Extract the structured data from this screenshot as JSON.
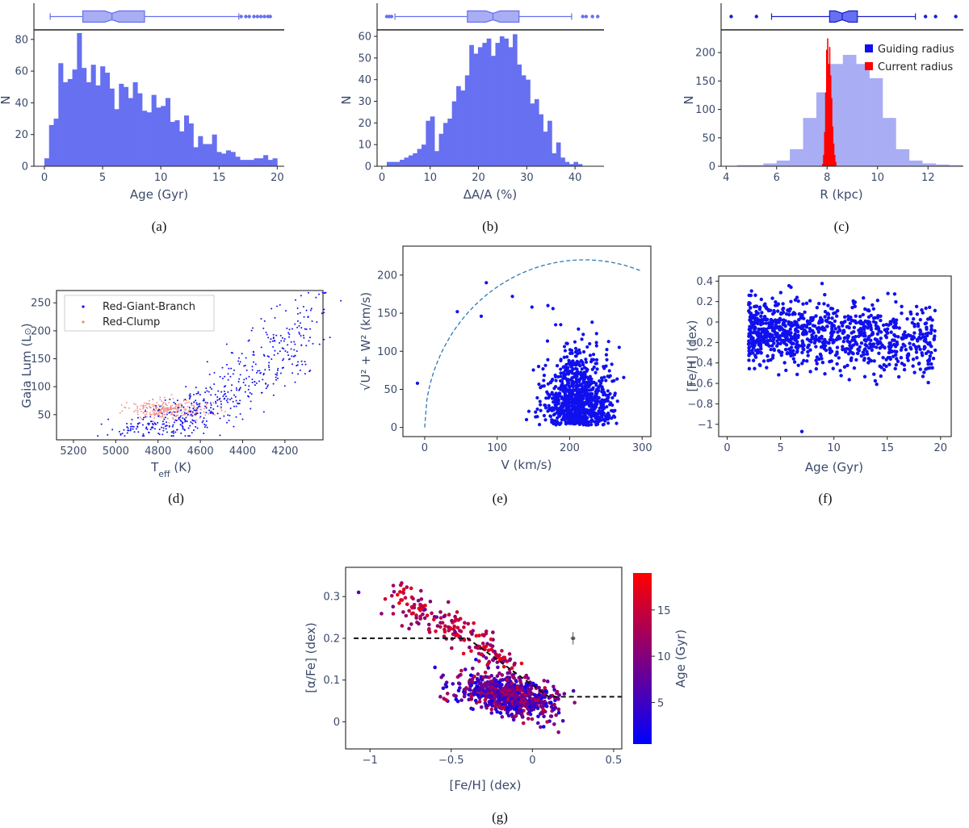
{
  "colors": {
    "hist_blue": "#6670f0",
    "hist_blue_light": "#a9adf3",
    "point_blue": "#1010ee",
    "red": "#ff0000",
    "rc_pink": "#f08a80",
    "tick_text": "#3b4a6b",
    "curve": "#2a7ab8"
  },
  "chart_data": [
    {
      "panel": "a",
      "type": "bar",
      "caption": "(a)",
      "xlabel": "Age (Gyr)",
      "ylabel": "N",
      "xlim": [
        -0.9,
        20.6
      ],
      "ylim": [
        0,
        86
      ],
      "xticks": [
        "0",
        "5",
        "10",
        "15",
        "20"
      ],
      "yticks": [
        "0",
        "20",
        "40",
        "60",
        "80"
      ],
      "bin_start": 0,
      "bin_width": 0.4,
      "values": [
        5,
        26,
        30,
        65,
        53,
        55,
        61,
        84,
        62,
        53,
        64,
        51,
        63,
        59,
        49,
        36,
        52,
        50,
        43,
        53,
        46,
        35,
        34,
        45,
        37,
        38,
        43,
        28,
        29,
        22,
        32,
        27,
        12,
        19,
        14,
        14,
        20,
        9,
        8,
        10,
        9,
        6,
        4,
        4,
        4,
        5,
        5,
        7,
        4,
        5
      ],
      "boxplot": {
        "min": 0.5,
        "q1": 3.3,
        "median": 5.8,
        "q3": 8.6,
        "max": 16.7,
        "outliers": [
          16.9,
          17.3,
          17.6,
          18.0,
          18.3,
          18.6,
          18.9,
          19.2,
          19.4
        ]
      }
    },
    {
      "panel": "b",
      "type": "bar",
      "caption": "(b)",
      "xlabel": "ΔA/A (%)",
      "ylabel": "N",
      "xlim": [
        -1,
        46
      ],
      "ylim": [
        0,
        63
      ],
      "xticks": [
        "0",
        "10",
        "20",
        "30",
        "40"
      ],
      "yticks": [
        "0",
        "10",
        "20",
        "30",
        "40",
        "50",
        "60"
      ],
      "bin_start": 1,
      "bin_width": 0.9,
      "values": [
        2,
        2,
        2,
        3,
        4,
        5,
        6,
        8,
        10,
        21,
        23,
        7,
        15,
        20,
        22,
        30,
        37,
        35,
        42,
        56,
        52,
        55,
        57,
        59,
        51,
        57,
        60,
        59,
        55,
        61,
        47,
        42,
        40,
        29,
        31,
        24,
        16,
        21,
        6,
        11,
        4,
        2,
        1,
        2,
        1,
        0,
        0,
        0
      ],
      "boxplot": {
        "min": 2.7,
        "q1": 17.7,
        "median": 23.0,
        "q3": 28.4,
        "max": 39.3,
        "outliers": [
          1.0,
          1.5,
          2.0,
          41.6,
          42.3,
          43.6,
          44.7
        ]
      }
    },
    {
      "panel": "c",
      "type": "bar",
      "caption": "(c)",
      "xlabel": "R (kpc)",
      "ylabel": "N",
      "xlim": [
        3.8,
        13.4
      ],
      "ylim": [
        0,
        240
      ],
      "xticks": [
        "4",
        "6",
        "8",
        "10",
        "12"
      ],
      "yticks": [
        "0",
        "50",
        "100",
        "150",
        "200"
      ],
      "series": [
        {
          "name": "Guiding radius",
          "bin_start": 3.9,
          "bin_width": 0.525,
          "values": [
            0,
            2,
            2,
            5,
            10,
            30,
            85,
            130,
            180,
            196,
            180,
            155,
            85,
            30,
            10,
            5,
            3,
            2
          ]
        },
        {
          "name": "Current radius",
          "bin_start": 7.8,
          "bin_width": 0.04,
          "values": [
            4,
            20,
            60,
            130,
            205,
            225,
            180,
            210,
            160,
            120,
            70,
            40,
            20,
            8
          ]
        }
      ],
      "boxplot": {
        "min": 5.8,
        "q1": 8.1,
        "median": 8.6,
        "q3": 9.2,
        "max": 11.5,
        "outliers": [
          4.2,
          5.2,
          11.9,
          12.3,
          13.1
        ]
      }
    },
    {
      "panel": "d",
      "type": "scatter",
      "caption": "(d)",
      "xlabel": "T",
      "xlabel_sub": "eff",
      "xlabel_tail": " (K)",
      "ylabel": "Gaia Lum (L",
      "ylabel_sym": "⊙",
      "ylabel_tail": ")",
      "xlim": [
        5280,
        4020
      ],
      "ylim": [
        5,
        272
      ],
      "xticks": [
        "5200",
        "5000",
        "4800",
        "4600",
        "4400",
        "4200"
      ],
      "yticks": [
        "50",
        "100",
        "150",
        "200",
        "250"
      ],
      "series": [
        {
          "name": "Red-Giant-Branch",
          "seed": 11,
          "n": 520
        },
        {
          "name": "Red-Clump",
          "seed": 23,
          "n": 280
        }
      ]
    },
    {
      "panel": "e",
      "type": "scatter",
      "caption": "(e)",
      "xlabel": "V (km/s)",
      "ylabel_prefix": "√",
      "ylabel": "U² + W² (km/s)",
      "xlim": [
        -30,
        312
      ],
      "ylim": [
        -12,
        238
      ],
      "xticks": [
        "0",
        "100",
        "200",
        "300"
      ],
      "yticks": [
        "0",
        "50",
        "100",
        "150",
        "200"
      ],
      "curve_center": [
        220,
        0
      ],
      "curve_radius": 220,
      "seed": 37,
      "n": 900
    },
    {
      "panel": "f",
      "type": "scatter",
      "caption": "(f)",
      "xlabel": "Age (Gyr)",
      "ylabel": "[Fe/H] (dex)",
      "xlim": [
        -0.8,
        21
      ],
      "ylim": [
        -1.12,
        0.45
      ],
      "xticks": [
        "0",
        "5",
        "10",
        "15",
        "20"
      ],
      "yticks": [
        "0.4",
        "0.2",
        "0",
        "−0.2",
        "−0.4",
        "−0.6",
        "−0.8",
        "−1"
      ],
      "seed": 53,
      "n": 1000
    },
    {
      "panel": "g",
      "type": "scatter",
      "caption": "(g)",
      "xlabel": "[Fe/H]  (dex)",
      "ylabel": "[α/Fe] (dex)",
      "colorbar_label": "Age (Gyr)",
      "colorbar_ticks": [
        "5",
        "10",
        "15"
      ],
      "colorbar_range": [
        0.5,
        19
      ],
      "xlim": [
        -1.15,
        0.55
      ],
      "ylim": [
        -0.065,
        0.37
      ],
      "xticks": [
        "−1",
        "−0.5",
        "0",
        "0.5"
      ],
      "yticks": [
        "0",
        "0.1",
        "0.2",
        "0.3"
      ],
      "dividing_line": [
        [
          -1.1,
          0.2
        ],
        [
          -0.4,
          0.2
        ],
        [
          0.1,
          0.06
        ],
        [
          0.55,
          0.06
        ]
      ],
      "error_bar": {
        "x": 0.25,
        "y": 0.2,
        "dx": 0.015,
        "dy": 0.015
      },
      "seed": 71,
      "n": 1000
    }
  ]
}
